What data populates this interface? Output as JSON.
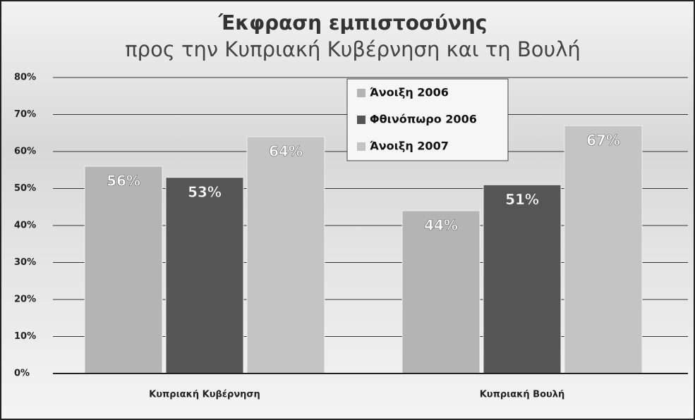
{
  "chart_data": {
    "type": "bar",
    "title": "Έκφραση εμπιστοσύνης",
    "subtitle": "προς την Κυπριακή Κυβέρνηση και τη Βουλή",
    "categories": [
      "Κυπριακή Κυβέρνηση",
      "Κυπριακή Βουλή"
    ],
    "series": [
      {
        "name": "Άνοιξη 2006",
        "color": "#b4b4b4",
        "values": [
          56,
          44
        ],
        "value_labels": [
          "56%",
          "44%"
        ]
      },
      {
        "name": "Φθινόπωρο 2006",
        "color": "#555555",
        "values": [
          53,
          51
        ],
        "value_labels": [
          "53%",
          "51%"
        ]
      },
      {
        "name": "Άνοιξη 2007",
        "color": "#c4c4c4",
        "values": [
          64,
          67
        ],
        "value_labels": [
          "64%",
          "67%"
        ]
      }
    ],
    "ylim": [
      0,
      80
    ],
    "yticks": [
      {
        "value": 0,
        "label": "0%"
      },
      {
        "value": 10,
        "label": "10%"
      },
      {
        "value": 20,
        "label": "20%"
      },
      {
        "value": 30,
        "label": "30%"
      },
      {
        "value": 40,
        "label": "40%"
      },
      {
        "value": 50,
        "label": "50%"
      },
      {
        "value": 60,
        "label": "60%"
      },
      {
        "value": 70,
        "label": "70%"
      },
      {
        "value": 80,
        "label": "80%"
      }
    ],
    "grid": true,
    "legend": "top"
  }
}
